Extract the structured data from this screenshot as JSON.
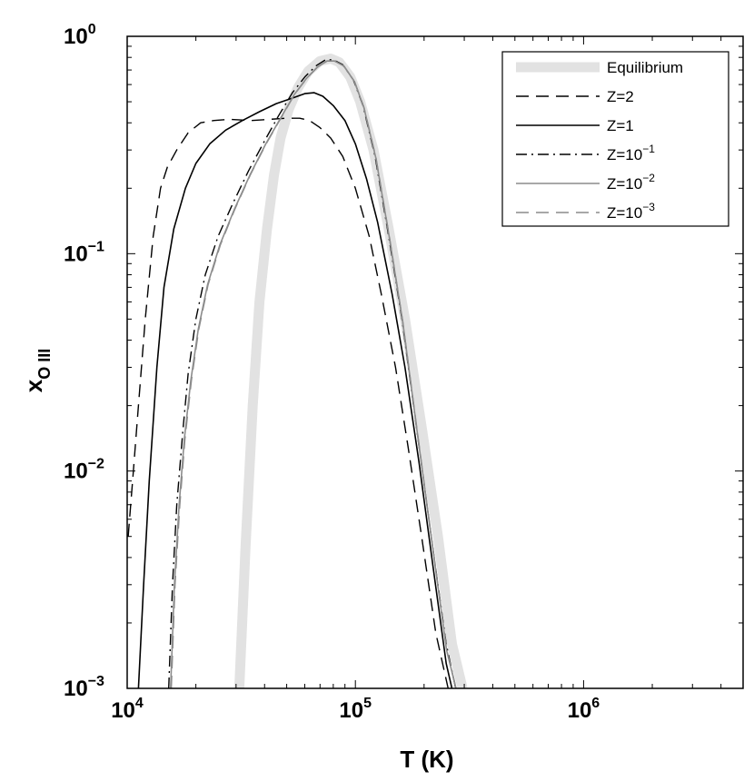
{
  "chart_data": {
    "type": "line",
    "xlabel": "T (K)",
    "ylabel": {
      "base": "x",
      "sub": "O III"
    },
    "xscale": "log",
    "yscale": "log",
    "xlim": [
      10000,
      5000000
    ],
    "ylim": [
      0.001,
      1
    ],
    "grid": false,
    "legend_position": "top-right",
    "x_ticks": [
      {
        "value": 10000,
        "base": "10",
        "exp": "4"
      },
      {
        "value": 100000,
        "base": "10",
        "exp": "5"
      },
      {
        "value": 1000000,
        "base": "10",
        "exp": "6"
      }
    ],
    "y_ticks": [
      {
        "value": 0.001,
        "base": "10",
        "exp": "−3"
      },
      {
        "value": 0.01,
        "base": "10",
        "exp": "−2"
      },
      {
        "value": 0.1,
        "base": "10",
        "exp": "−1"
      },
      {
        "value": 1,
        "base": "10",
        "exp": "0"
      }
    ],
    "series": [
      {
        "name": "Equilibrium",
        "name_base": "Equilibrium",
        "name_exp": "",
        "color": "#e2e2e2",
        "width": 11,
        "dash": "",
        "points": [
          [
            31000,
            0.001
          ],
          [
            33000,
            0.0045
          ],
          [
            35500,
            0.02
          ],
          [
            38000,
            0.06
          ],
          [
            41000,
            0.13
          ],
          [
            44000,
            0.23
          ],
          [
            47000,
            0.34
          ],
          [
            51000,
            0.46
          ],
          [
            56000,
            0.58
          ],
          [
            62000,
            0.69
          ],
          [
            70000,
            0.77
          ],
          [
            78000,
            0.79
          ],
          [
            85000,
            0.76
          ],
          [
            95000,
            0.65
          ],
          [
            105000,
            0.5
          ],
          [
            120000,
            0.3
          ],
          [
            140000,
            0.13
          ],
          [
            165000,
            0.05
          ],
          [
            195000,
            0.016
          ],
          [
            230000,
            0.005
          ],
          [
            265000,
            0.0016
          ],
          [
            295000,
            0.001
          ]
        ]
      },
      {
        "name": "Z=2",
        "name_base": "Z=2",
        "name_exp": "",
        "color": "#000000",
        "width": 1.4,
        "dash": "14,8",
        "points": [
          [
            10100,
            0.005
          ],
          [
            10600,
            0.0095
          ],
          [
            11200,
            0.02
          ],
          [
            12000,
            0.05
          ],
          [
            13000,
            0.12
          ],
          [
            14000,
            0.2
          ],
          [
            15000,
            0.25
          ],
          [
            16500,
            0.3
          ],
          [
            18500,
            0.36
          ],
          [
            21000,
            0.4
          ],
          [
            24000,
            0.41
          ],
          [
            28000,
            0.415
          ],
          [
            35000,
            0.41
          ],
          [
            42000,
            0.415
          ],
          [
            50000,
            0.42
          ],
          [
            57000,
            0.42
          ],
          [
            63000,
            0.41
          ],
          [
            70000,
            0.38
          ],
          [
            78000,
            0.34
          ],
          [
            88000,
            0.28
          ],
          [
            100000,
            0.2
          ],
          [
            115000,
            0.12
          ],
          [
            130000,
            0.065
          ],
          [
            150000,
            0.03
          ],
          [
            170000,
            0.013
          ],
          [
            195000,
            0.005
          ],
          [
            225000,
            0.0018
          ],
          [
            255000,
            0.001
          ]
        ]
      },
      {
        "name": "Z=1",
        "name_base": "Z=1",
        "name_exp": "",
        "color": "#000000",
        "width": 1.6,
        "dash": "",
        "points": [
          [
            11200,
            0.001
          ],
          [
            11800,
            0.003
          ],
          [
            12500,
            0.009
          ],
          [
            13500,
            0.03
          ],
          [
            14500,
            0.07
          ],
          [
            16000,
            0.13
          ],
          [
            18000,
            0.2
          ],
          [
            20000,
            0.26
          ],
          [
            23000,
            0.32
          ],
          [
            27000,
            0.37
          ],
          [
            32000,
            0.41
          ],
          [
            38000,
            0.45
          ],
          [
            45000,
            0.49
          ],
          [
            53000,
            0.52
          ],
          [
            60000,
            0.545
          ],
          [
            66000,
            0.55
          ],
          [
            72000,
            0.53
          ],
          [
            80000,
            0.48
          ],
          [
            90000,
            0.41
          ],
          [
            100000,
            0.32
          ],
          [
            112000,
            0.22
          ],
          [
            125000,
            0.14
          ],
          [
            145000,
            0.065
          ],
          [
            165000,
            0.03
          ],
          [
            190000,
            0.011
          ],
          [
            220000,
            0.0035
          ],
          [
            250000,
            0.0013
          ],
          [
            265000,
            0.001
          ]
        ]
      },
      {
        "name": "Z=10^-1",
        "name_base": "Z=10",
        "name_exp": "−1",
        "color": "#000000",
        "width": 1.4,
        "dash": "12,5,2,5",
        "points": [
          [
            15200,
            0.001
          ],
          [
            15800,
            0.003
          ],
          [
            16500,
            0.007
          ],
          [
            17500,
            0.015
          ],
          [
            18500,
            0.028
          ],
          [
            20000,
            0.05
          ],
          [
            22000,
            0.08
          ],
          [
            25000,
            0.12
          ],
          [
            29000,
            0.17
          ],
          [
            34000,
            0.24
          ],
          [
            40000,
            0.33
          ],
          [
            46000,
            0.43
          ],
          [
            53000,
            0.55
          ],
          [
            60000,
            0.65
          ],
          [
            67000,
            0.73
          ],
          [
            74000,
            0.78
          ],
          [
            80000,
            0.78
          ],
          [
            88000,
            0.74
          ],
          [
            98000,
            0.63
          ],
          [
            108000,
            0.48
          ],
          [
            122000,
            0.28
          ],
          [
            140000,
            0.12
          ],
          [
            160000,
            0.05
          ],
          [
            185000,
            0.016
          ],
          [
            215000,
            0.005
          ],
          [
            250000,
            0.0016
          ],
          [
            275000,
            0.001
          ]
        ]
      },
      {
        "name": "Z=10^-2",
        "name_base": "Z=10",
        "name_exp": "−2",
        "color": "#8c8c8c",
        "width": 1.6,
        "dash": "",
        "points": [
          [
            15500,
            0.001
          ],
          [
            16100,
            0.003
          ],
          [
            16900,
            0.007
          ],
          [
            17800,
            0.014
          ],
          [
            19000,
            0.026
          ],
          [
            20500,
            0.045
          ],
          [
            22500,
            0.072
          ],
          [
            25500,
            0.11
          ],
          [
            29500,
            0.16
          ],
          [
            34500,
            0.23
          ],
          [
            40500,
            0.32
          ],
          [
            47000,
            0.42
          ],
          [
            54000,
            0.54
          ],
          [
            61000,
            0.64
          ],
          [
            68000,
            0.72
          ],
          [
            75000,
            0.77
          ],
          [
            81000,
            0.77
          ],
          [
            89000,
            0.73
          ],
          [
            99000,
            0.62
          ],
          [
            109000,
            0.47
          ],
          [
            123000,
            0.275
          ],
          [
            141000,
            0.118
          ],
          [
            161000,
            0.049
          ],
          [
            186000,
            0.0155
          ],
          [
            216000,
            0.0048
          ],
          [
            251000,
            0.0015
          ],
          [
            276000,
            0.001
          ]
        ]
      },
      {
        "name": "Z=10^-3",
        "name_base": "Z=10",
        "name_exp": "−3",
        "color": "#8c8c8c",
        "width": 1.6,
        "dash": "14,8",
        "points": [
          [
            15600,
            0.001
          ],
          [
            16200,
            0.003
          ],
          [
            17000,
            0.007
          ],
          [
            17900,
            0.014
          ],
          [
            19100,
            0.026
          ],
          [
            20600,
            0.045
          ],
          [
            22600,
            0.072
          ],
          [
            25600,
            0.11
          ],
          [
            29600,
            0.16
          ],
          [
            34600,
            0.23
          ],
          [
            40600,
            0.32
          ],
          [
            47100,
            0.42
          ],
          [
            54100,
            0.54
          ],
          [
            61100,
            0.64
          ],
          [
            68100,
            0.72
          ],
          [
            75100,
            0.77
          ],
          [
            81100,
            0.77
          ],
          [
            89100,
            0.73
          ],
          [
            99100,
            0.62
          ],
          [
            109100,
            0.47
          ],
          [
            123100,
            0.275
          ],
          [
            141100,
            0.118
          ],
          [
            161100,
            0.049
          ],
          [
            186100,
            0.0155
          ],
          [
            216100,
            0.0048
          ],
          [
            251100,
            0.0015
          ],
          [
            276100,
            0.001
          ]
        ]
      }
    ]
  }
}
